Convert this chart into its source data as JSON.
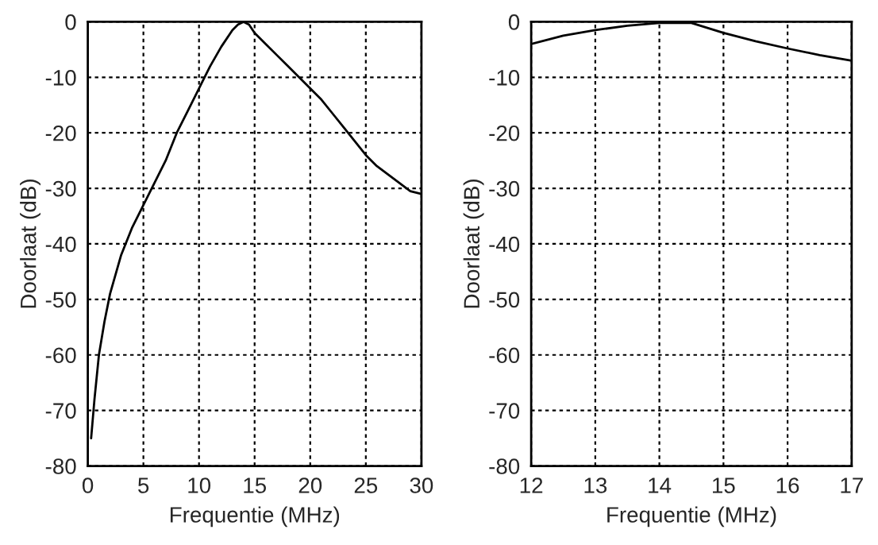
{
  "chart_data": [
    {
      "type": "line",
      "xlabel": "Frequentie (MHz)",
      "ylabel": "Doorlaat (dB)",
      "x": [
        0.3,
        0.6,
        1,
        1.5,
        2,
        3,
        4,
        5,
        6,
        7,
        8,
        9,
        10,
        11,
        12,
        13,
        13.5,
        14,
        14.5,
        15,
        16,
        17,
        18,
        19,
        20,
        21,
        22,
        23,
        24,
        25,
        26,
        27,
        28,
        29,
        30
      ],
      "series": [
        {
          "color": "#000000",
          "values": [
            -75,
            -68,
            -60,
            -54,
            -49,
            -42,
            -37,
            -33,
            -29,
            -25,
            -20,
            -16,
            -12,
            -8,
            -4.5,
            -1.5,
            -0.5,
            0,
            -0.5,
            -2,
            -4,
            -6,
            -8,
            -10,
            -12,
            -14,
            -16.5,
            -19,
            -21.5,
            -24,
            -26,
            -27.5,
            -29,
            -30.5,
            -31
          ]
        }
      ],
      "xlim": [
        0,
        30
      ],
      "xticks": [
        0,
        5,
        10,
        15,
        20,
        25,
        30
      ],
      "ylim": [
        -80,
        0
      ],
      "yticks": [
        -80,
        -70,
        -60,
        -50,
        -40,
        -30,
        -20,
        -10,
        0
      ],
      "grid": true,
      "line_style": "solid",
      "marker": "none",
      "legend": false
    },
    {
      "type": "line",
      "xlabel": "Frequentie (MHz)",
      "ylabel": "Doorlaat (dB)",
      "x": [
        12,
        12.5,
        13,
        13.5,
        14,
        14.5,
        15,
        15.5,
        16,
        16.5,
        17
      ],
      "series": [
        {
          "color": "#000000",
          "values": [
            -4,
            -2.5,
            -1.5,
            -0.7,
            -0.2,
            -0.2,
            -2,
            -3.5,
            -4.8,
            -6,
            -7
          ]
        }
      ],
      "xlim": [
        12,
        17
      ],
      "xticks": [
        12,
        13,
        14,
        15,
        16,
        17
      ],
      "ylim": [
        -80,
        0
      ],
      "yticks": [
        -80,
        -70,
        -60,
        -50,
        -40,
        -30,
        -20,
        -10,
        0
      ],
      "grid": true,
      "line_style": "solid",
      "marker": "none",
      "legend": false
    }
  ]
}
